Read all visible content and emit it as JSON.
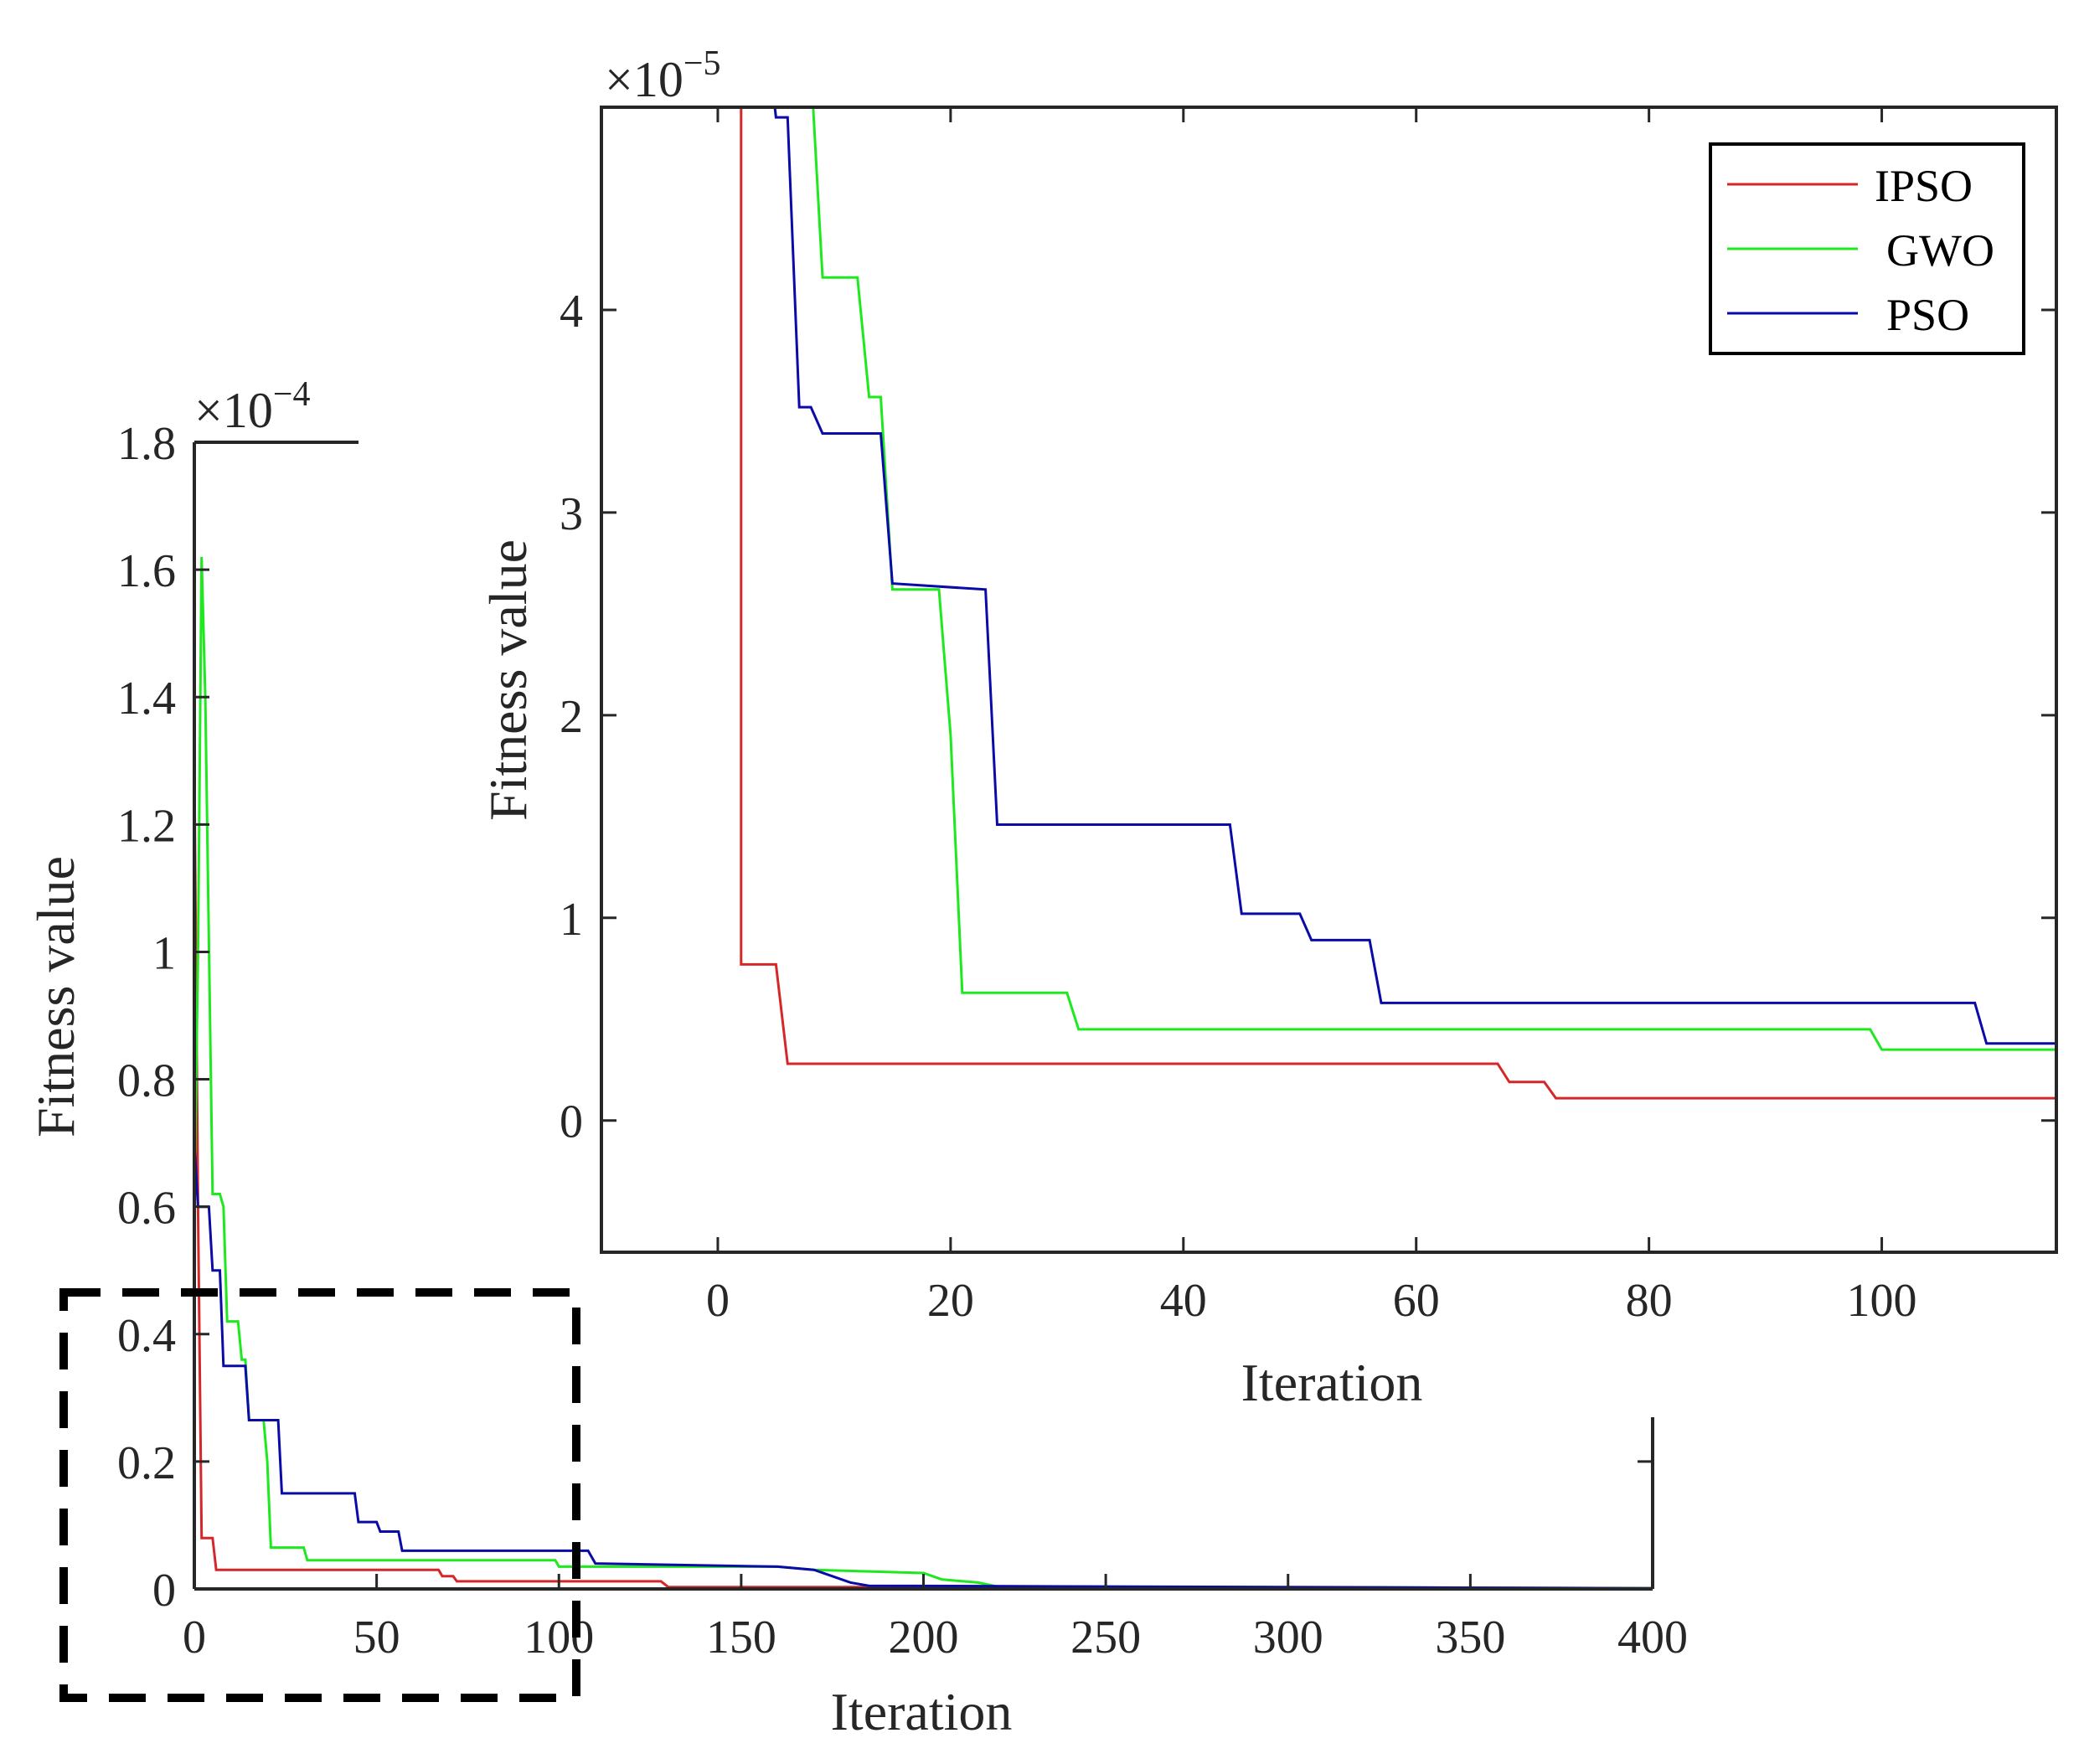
{
  "chart_data": [
    {
      "id": "main",
      "type": "line",
      "xlabel": "Iteration",
      "ylabel": "Fitness value",
      "exponent_label": {
        "base": "×10",
        "power": "−4"
      },
      "xlim": [
        0,
        400
      ],
      "ylim": [
        0,
        1.8
      ],
      "xticks": [
        0,
        50,
        100,
        150,
        200,
        250,
        300,
        350,
        400
      ],
      "xtick_labels": [
        "0",
        "50",
        "100",
        "150",
        "200",
        "250",
        "300",
        "350",
        "400"
      ],
      "yticks": [
        0,
        0.2,
        0.4,
        0.6,
        0.8,
        1,
        1.2,
        1.4,
        1.6,
        1.8
      ],
      "ytick_labels": [
        "0",
        "0.2",
        "0.4",
        "0.6",
        "0.8",
        "1",
        "1.2",
        "1.4",
        "1.6",
        "1.8"
      ],
      "series": [
        {
          "name": "IPSO",
          "color": "#d62728",
          "points": [
            [
              0,
              1.3
            ],
            [
              1,
              0.6
            ],
            [
              2,
              0.08
            ],
            [
              5,
              0.08
            ],
            [
              6,
              0.03
            ],
            [
              67,
              0.03
            ],
            [
              68,
              0.02
            ],
            [
              71,
              0.02
            ],
            [
              72,
              0.012
            ],
            [
              128,
              0.012
            ],
            [
              130,
              0.003
            ],
            [
              215,
              0.003
            ],
            [
              400,
              0.001
            ]
          ]
        },
        {
          "name": "GWO",
          "color": "#1ee81e",
          "points": [
            [
              0,
              0.6
            ],
            [
              1,
              1.0
            ],
            [
              2,
              1.62
            ],
            [
              3,
              1.4
            ],
            [
              5,
              0.62
            ],
            [
              7,
              0.62
            ],
            [
              8,
              0.6
            ],
            [
              9,
              0.42
            ],
            [
              12,
              0.42
            ],
            [
              13,
              0.36
            ],
            [
              14,
              0.36
            ],
            [
              15,
              0.265
            ],
            [
              19,
              0.265
            ],
            [
              20,
              0.2
            ],
            [
              21,
              0.065
            ],
            [
              30,
              0.065
            ],
            [
              31,
              0.045
            ],
            [
              99,
              0.045
            ],
            [
              100,
              0.035
            ],
            [
              160,
              0.035
            ],
            [
              170,
              0.03
            ],
            [
              200,
              0.025
            ],
            [
              205,
              0.015
            ],
            [
              215,
              0.01
            ],
            [
              220,
              0.004
            ],
            [
              400,
              0.001
            ]
          ]
        },
        {
          "name": "PSO",
          "color": "#0a0aa8",
          "points": [
            [
              0,
              0.7
            ],
            [
              1,
              0.6
            ],
            [
              4,
              0.6
            ],
            [
              5,
              0.5
            ],
            [
              7,
              0.5
            ],
            [
              8,
              0.35
            ],
            [
              14,
              0.35
            ],
            [
              15,
              0.265
            ],
            [
              23,
              0.265
            ],
            [
              24,
              0.15
            ],
            [
              44,
              0.15
            ],
            [
              45,
              0.105
            ],
            [
              50,
              0.105
            ],
            [
              51,
              0.09
            ],
            [
              56,
              0.09
            ],
            [
              57,
              0.06
            ],
            [
              108,
              0.06
            ],
            [
              110,
              0.04
            ],
            [
              160,
              0.035
            ],
            [
              170,
              0.03
            ],
            [
              175,
              0.02
            ],
            [
              180,
              0.01
            ],
            [
              185,
              0.005
            ],
            [
              400,
              0.001
            ]
          ]
        }
      ]
    },
    {
      "id": "inset",
      "type": "line",
      "xlabel": "Iteration",
      "ylabel": "Fitness value",
      "exponent_label": {
        "base": "×10",
        "power": "−5"
      },
      "xlim": [
        -10,
        115
      ],
      "ylim": [
        -0.65,
        5
      ],
      "xticks": [
        0,
        20,
        40,
        60,
        80,
        100
      ],
      "xtick_labels": [
        "0",
        "20",
        "40",
        "60",
        "80",
        "100"
      ],
      "yticks": [
        0,
        1,
        2,
        3,
        4
      ],
      "ytick_labels": [
        "0",
        "1",
        "2",
        "3",
        "4"
      ],
      "legend": {
        "position": "top-right",
        "entries": [
          "IPSO",
          "GWO",
          "PSO"
        ]
      },
      "series": [
        {
          "name": "IPSO",
          "color": "#d62728",
          "points": [
            [
              1,
              5.2
            ],
            [
              2,
              5.0
            ],
            [
              2,
              0.77
            ],
            [
              5,
              0.77
            ],
            [
              6,
              0.28
            ],
            [
              67,
              0.28
            ],
            [
              68,
              0.19
            ],
            [
              71,
              0.19
            ],
            [
              72,
              0.11
            ],
            [
              115,
              0.11
            ]
          ]
        },
        {
          "name": "GWO",
          "color": "#1ee81e",
          "points": [
            [
              8,
              5.2
            ],
            [
              9,
              4.16
            ],
            [
              12,
              4.16
            ],
            [
              13,
              3.57
            ],
            [
              14,
              3.57
            ],
            [
              15,
              2.62
            ],
            [
              19,
              2.62
            ],
            [
              20,
              1.9
            ],
            [
              21,
              0.63
            ],
            [
              30,
              0.63
            ],
            [
              31,
              0.45
            ],
            [
              99,
              0.45
            ],
            [
              100,
              0.35
            ],
            [
              115,
              0.35
            ]
          ]
        },
        {
          "name": "PSO",
          "color": "#0a0aa8",
          "points": [
            [
              4.5,
              5.2
            ],
            [
              5,
              4.95
            ],
            [
              6,
              4.95
            ],
            [
              7,
              3.52
            ],
            [
              8,
              3.52
            ],
            [
              9,
              3.39
            ],
            [
              14,
              3.39
            ],
            [
              15,
              2.65
            ],
            [
              23,
              2.62
            ],
            [
              24,
              1.46
            ],
            [
              44,
              1.46
            ],
            [
              45,
              1.02
            ],
            [
              50,
              1.02
            ],
            [
              51,
              0.89
            ],
            [
              56,
              0.89
            ],
            [
              57,
              0.58
            ],
            [
              108,
              0.58
            ],
            [
              109,
              0.38
            ],
            [
              115,
              0.38
            ]
          ]
        }
      ]
    }
  ],
  "zoom_box": {
    "note": "dashed rectangle marking zoomed region",
    "range_x": [
      0,
      105
    ],
    "range_y": [
      0,
      0.45
    ]
  }
}
